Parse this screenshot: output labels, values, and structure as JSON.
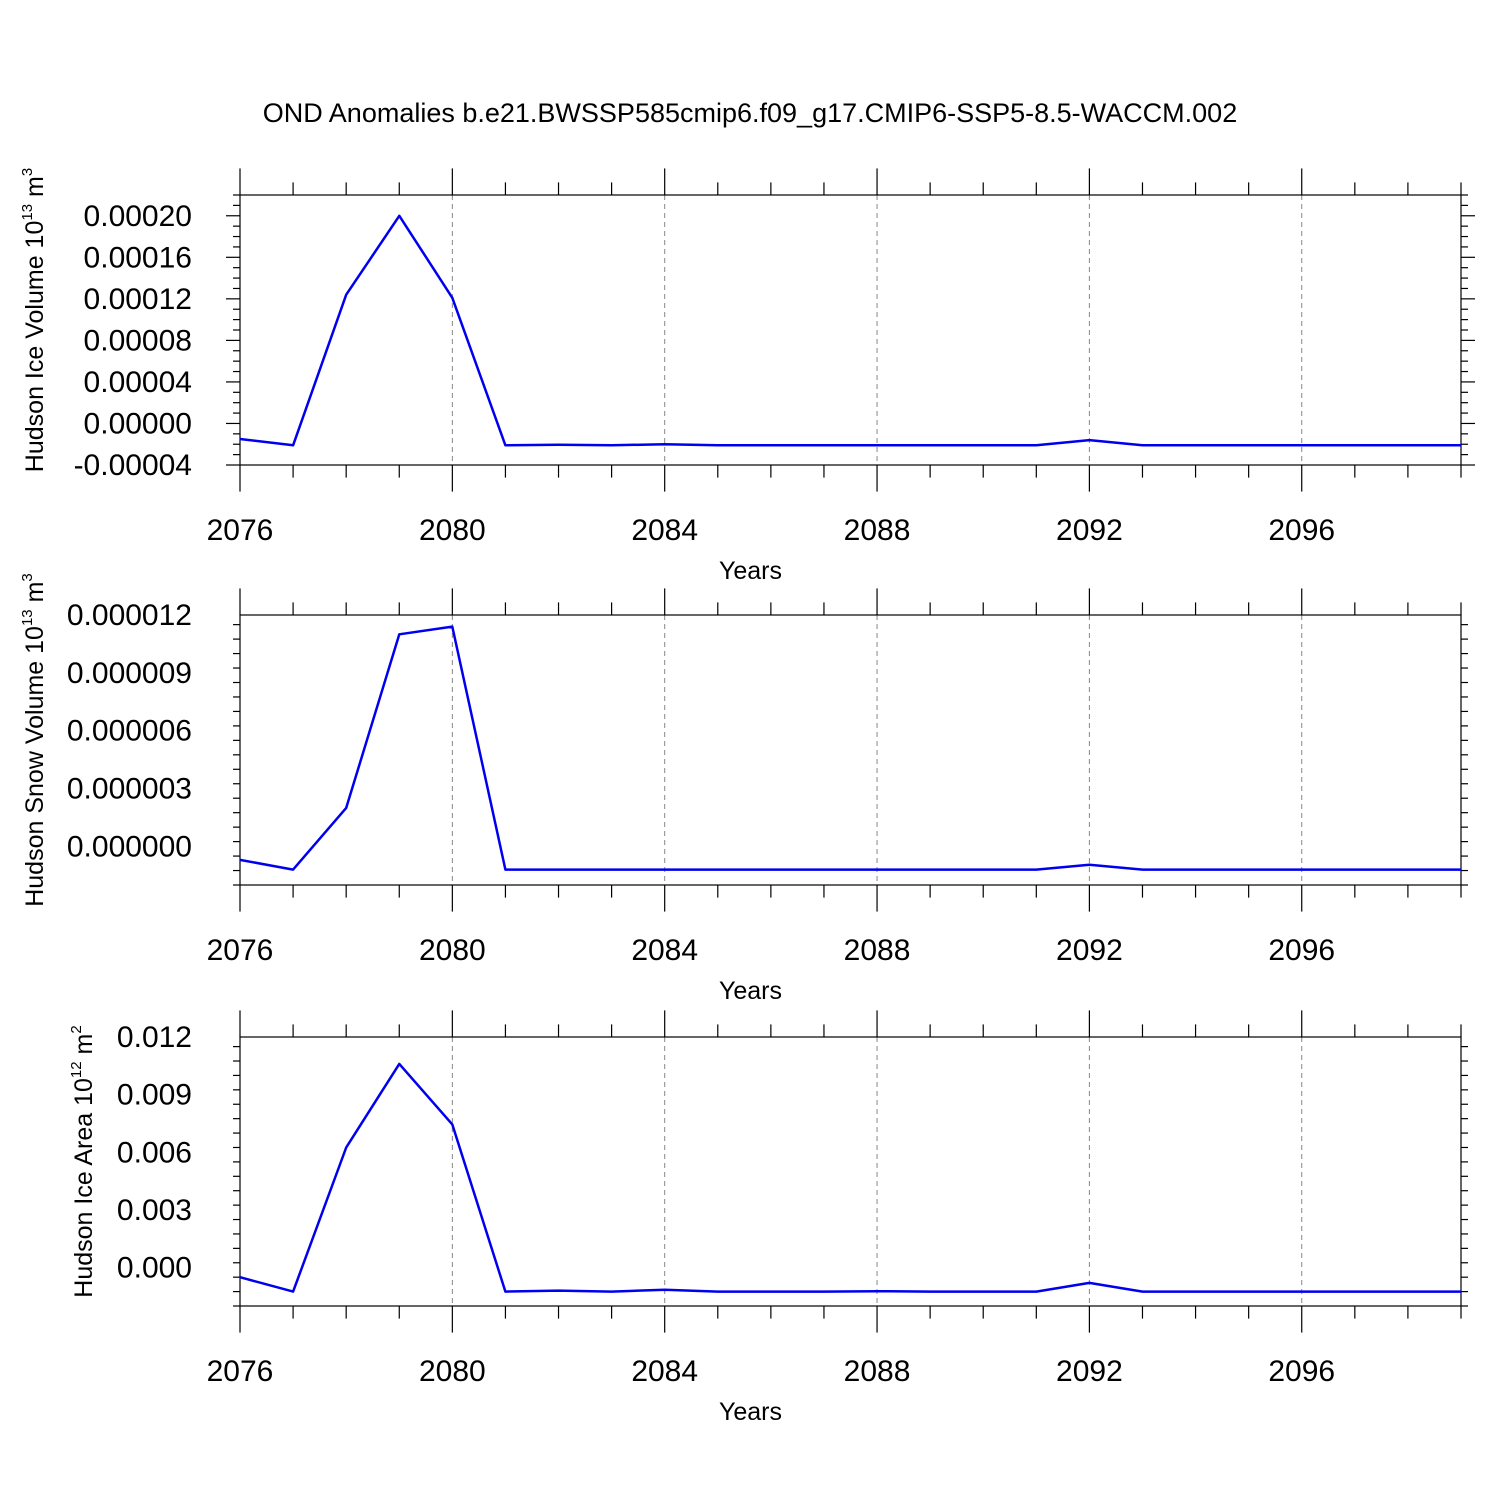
{
  "figure_title": "OND Anomalies b.e21.BWSSP585cmip6.f09_g17.CMIP6-SSP5-8.5-WACCM.002",
  "line_color": "#0000ee",
  "chart_data": [
    {
      "type": "line",
      "ylabel": "Hudson Ice Volume 10",
      "ylabel_exp": "13",
      "ylabel_unit": "m",
      "ylabel_unit_exp": "3",
      "xlabel": "Years",
      "xlim": [
        2076,
        2099
      ],
      "ylim": [
        -4e-05,
        0.00022
      ],
      "x_ticks": [
        2076,
        2080,
        2084,
        2088,
        2092,
        2096
      ],
      "x_tick_labels": [
        "2076",
        "2080",
        "2084",
        "2088",
        "2092",
        "2096"
      ],
      "y_ticks": [
        -4e-05,
        0.0,
        4e-05,
        8e-05,
        0.00012,
        0.00016,
        0.0002
      ],
      "y_tick_labels": [
        "-0.00004",
        "0.00000",
        "0.00004",
        "0.00008",
        "0.00012",
        "0.00016",
        "0.00020"
      ],
      "grid": "vertical dashed at major x ticks",
      "x": [
        2076,
        2077,
        2078,
        2079,
        2080,
        2081,
        2082,
        2083,
        2084,
        2085,
        2086,
        2087,
        2088,
        2089,
        2090,
        2091,
        2092,
        2093,
        2094,
        2095,
        2096,
        2097,
        2098,
        2099
      ],
      "y": [
        -1.5e-05,
        -2.1e-05,
        0.000124,
        0.0002,
        0.000121,
        -2.1e-05,
        -2.05e-05,
        -2.1e-05,
        -2e-05,
        -2.1e-05,
        -2.1e-05,
        -2.1e-05,
        -2.1e-05,
        -2.1e-05,
        -2.1e-05,
        -2.1e-05,
        -1.6e-05,
        -2.1e-05,
        -2.1e-05,
        -2.1e-05,
        -2.1e-05,
        -2.1e-05,
        -2.1e-05,
        -2.1e-05
      ]
    },
    {
      "type": "line",
      "ylabel": "Hudson Snow Volume 10",
      "ylabel_exp": "13",
      "ylabel_unit": "m",
      "ylabel_unit_exp": "3",
      "xlabel": "Years",
      "xlim": [
        2076,
        2099
      ],
      "ylim": [
        -2e-06,
        1.2e-05
      ],
      "x_ticks": [
        2076,
        2080,
        2084,
        2088,
        2092,
        2096
      ],
      "x_tick_labels": [
        "2076",
        "2080",
        "2084",
        "2088",
        "2092",
        "2096"
      ],
      "y_ticks": [
        0.0,
        3e-06,
        6e-06,
        9e-06,
        1.2e-05
      ],
      "y_tick_labels": [
        "0.000000",
        "0.000003",
        "0.000006",
        "0.000009",
        "0.000012"
      ],
      "grid": "vertical dashed at major x ticks",
      "x": [
        2076,
        2077,
        2078,
        2079,
        2080,
        2081,
        2082,
        2083,
        2084,
        2085,
        2086,
        2087,
        2088,
        2089,
        2090,
        2091,
        2092,
        2093,
        2094,
        2095,
        2096,
        2097,
        2098,
        2099
      ],
      "y": [
        -7e-07,
        -1.2e-06,
        2e-06,
        1.1e-05,
        1.14e-05,
        -1.2e-06,
        -1.2e-06,
        -1.2e-06,
        -1.2e-06,
        -1.2e-06,
        -1.2e-06,
        -1.2e-06,
        -1.2e-06,
        -1.2e-06,
        -1.2e-06,
        -1.2e-06,
        -9.5e-07,
        -1.2e-06,
        -1.2e-06,
        -1.2e-06,
        -1.2e-06,
        -1.2e-06,
        -1.2e-06,
        -1.2e-06
      ]
    },
    {
      "type": "line",
      "ylabel": "Hudson Ice Area 10",
      "ylabel_exp": "12",
      "ylabel_unit": "m",
      "ylabel_unit_exp": "2",
      "xlabel": "Years",
      "xlim": [
        2076,
        2099
      ],
      "ylim": [
        -0.002,
        0.012
      ],
      "x_ticks": [
        2076,
        2080,
        2084,
        2088,
        2092,
        2096
      ],
      "x_tick_labels": [
        "2076",
        "2080",
        "2084",
        "2088",
        "2092",
        "2096"
      ],
      "y_ticks": [
        0.0,
        0.003,
        0.006,
        0.009,
        0.012
      ],
      "y_tick_labels": [
        "0.000",
        "0.003",
        "0.006",
        "0.009",
        "0.012"
      ],
      "grid": "vertical dashed at major x ticks",
      "x": [
        2076,
        2077,
        2078,
        2079,
        2080,
        2081,
        2082,
        2083,
        2084,
        2085,
        2086,
        2087,
        2088,
        2089,
        2090,
        2091,
        2092,
        2093,
        2094,
        2095,
        2096,
        2097,
        2098,
        2099
      ],
      "y": [
        -0.0005,
        -0.00125,
        0.00625,
        0.0106,
        0.00745,
        -0.00125,
        -0.0012,
        -0.00125,
        -0.00115,
        -0.00125,
        -0.00125,
        -0.00125,
        -0.00123,
        -0.00125,
        -0.00125,
        -0.00125,
        -0.0008,
        -0.00125,
        -0.00125,
        -0.00125,
        -0.00125,
        -0.00125,
        -0.00125,
        -0.00125
      ]
    }
  ]
}
